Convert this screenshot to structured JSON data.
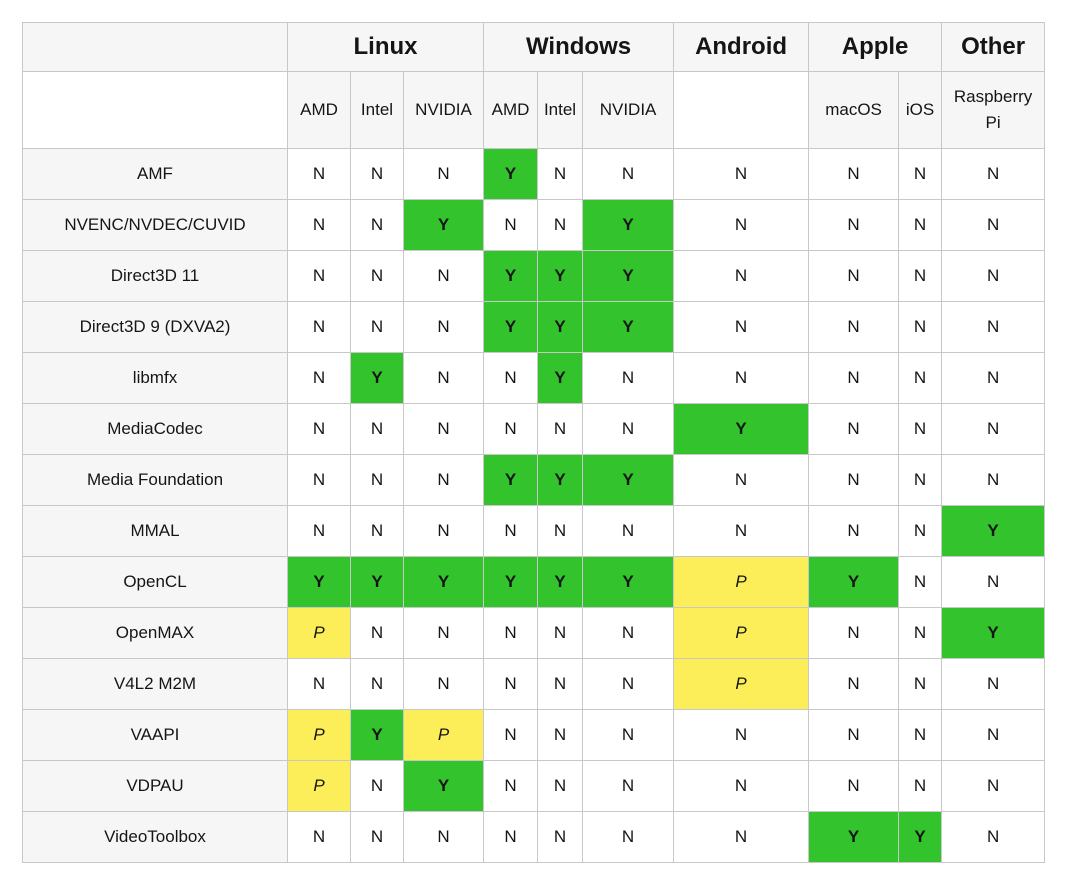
{
  "colors": {
    "green": "#33c32d",
    "yellow": "#fcee58",
    "header": "#f6f6f6",
    "border": "#c8c8c8",
    "text": "#151515"
  },
  "table": {
    "corner_label": "",
    "groups": [
      {
        "label": "Linux",
        "subs": [
          "AMD",
          "Intel",
          "NVIDIA"
        ]
      },
      {
        "label": "Windows",
        "subs": [
          "AMD",
          "Intel",
          "NVIDIA"
        ]
      },
      {
        "label": "Android",
        "subs": [
          ""
        ]
      },
      {
        "label": "Apple",
        "subs": [
          "macOS",
          "iOS"
        ]
      },
      {
        "label": "Other",
        "subs": [
          "Raspberry Pi"
        ]
      }
    ],
    "column_keys": [
      "linux-amd",
      "linux-intel",
      "linux-nvidia",
      "windows-amd",
      "windows-intel",
      "windows-nvidia",
      "android",
      "apple-macos",
      "apple-ios",
      "other-raspberry-pi"
    ],
    "rows": [
      {
        "label": "AMF",
        "values": [
          "N",
          "N",
          "N",
          "Y",
          "N",
          "N",
          "N",
          "N",
          "N",
          "N"
        ]
      },
      {
        "label": "NVENC/NVDEC/CUVID",
        "values": [
          "N",
          "N",
          "Y",
          "N",
          "N",
          "Y",
          "N",
          "N",
          "N",
          "N"
        ]
      },
      {
        "label": "Direct3D 11",
        "values": [
          "N",
          "N",
          "N",
          "Y",
          "Y",
          "Y",
          "N",
          "N",
          "N",
          "N"
        ]
      },
      {
        "label": "Direct3D 9 (DXVA2)",
        "values": [
          "N",
          "N",
          "N",
          "Y",
          "Y",
          "Y",
          "N",
          "N",
          "N",
          "N"
        ]
      },
      {
        "label": "libmfx",
        "values": [
          "N",
          "Y",
          "N",
          "N",
          "Y",
          "N",
          "N",
          "N",
          "N",
          "N"
        ]
      },
      {
        "label": "MediaCodec",
        "values": [
          "N",
          "N",
          "N",
          "N",
          "N",
          "N",
          "Y",
          "N",
          "N",
          "N"
        ]
      },
      {
        "label": "Media Foundation",
        "values": [
          "N",
          "N",
          "N",
          "Y",
          "Y",
          "Y",
          "N",
          "N",
          "N",
          "N"
        ]
      },
      {
        "label": "MMAL",
        "values": [
          "N",
          "N",
          "N",
          "N",
          "N",
          "N",
          "N",
          "N",
          "N",
          "Y"
        ]
      },
      {
        "label": "OpenCL",
        "values": [
          "Y",
          "Y",
          "Y",
          "Y",
          "Y",
          "Y",
          "P",
          "Y",
          "N",
          "N"
        ]
      },
      {
        "label": "OpenMAX",
        "values": [
          "P",
          "N",
          "N",
          "N",
          "N",
          "N",
          "P",
          "N",
          "N",
          "Y"
        ]
      },
      {
        "label": "V4L2 M2M",
        "values": [
          "N",
          "N",
          "N",
          "N",
          "N",
          "N",
          "P",
          "N",
          "N",
          "N"
        ]
      },
      {
        "label": "VAAPI",
        "values": [
          "P",
          "Y",
          "P",
          "N",
          "N",
          "N",
          "N",
          "N",
          "N",
          "N"
        ]
      },
      {
        "label": "VDPAU",
        "values": [
          "P",
          "N",
          "Y",
          "N",
          "N",
          "N",
          "N",
          "N",
          "N",
          "N"
        ]
      },
      {
        "label": "VideoToolbox",
        "values": [
          "N",
          "N",
          "N",
          "N",
          "N",
          "N",
          "N",
          "Y",
          "Y",
          "N"
        ]
      }
    ]
  }
}
